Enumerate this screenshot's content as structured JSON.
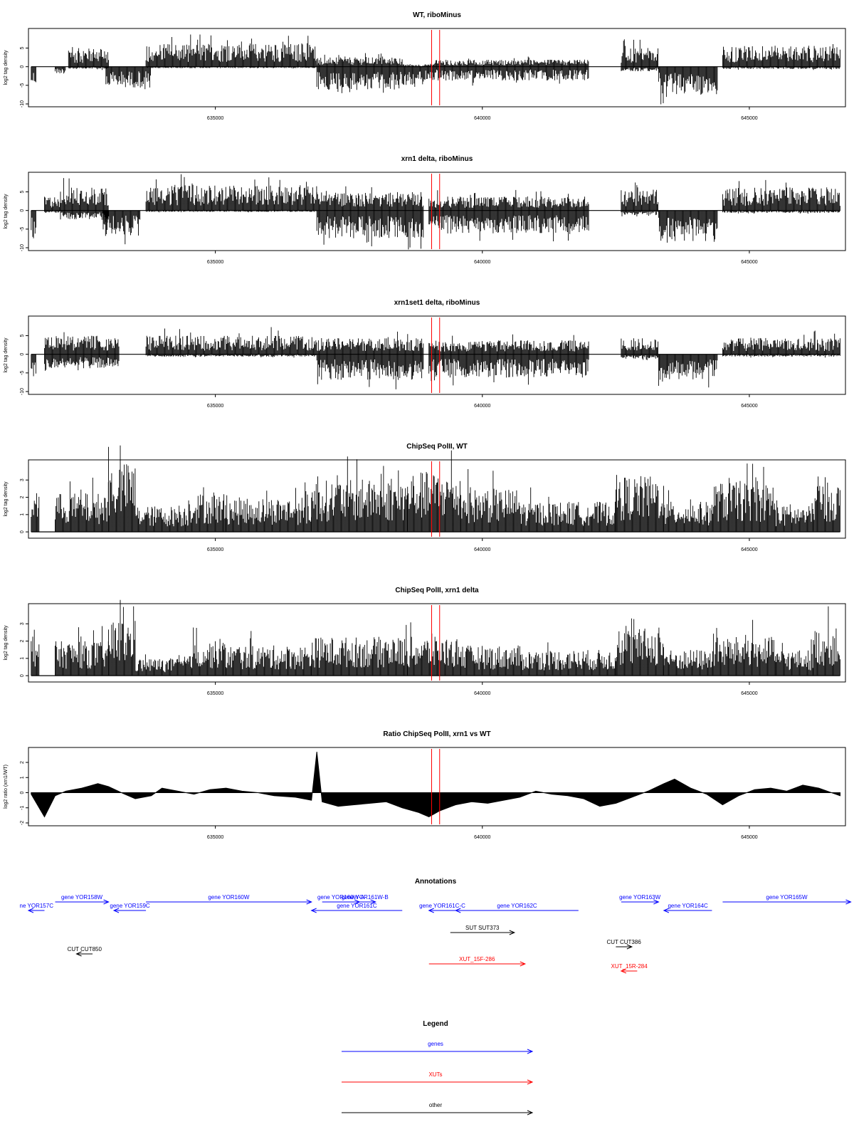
{
  "colors": {
    "gene": "#0000ff",
    "xut": "#ff0000",
    "other": "#000000",
    "marker": "#ff0000",
    "bars": "#000000"
  },
  "chart_data": [
    {
      "type": "bar",
      "id": "p1",
      "title": "WT, riboMinus",
      "ylabel": "log2 tag density",
      "xlim": [
        631500,
        646800
      ],
      "ylim": [
        -10,
        9.5
      ],
      "yticks": [
        -10,
        -5,
        0,
        5
      ],
      "xticks": [
        635000,
        640000,
        645000
      ],
      "markers": [
        639050,
        639200
      ],
      "segments": [
        {
          "x": [
            631550,
            631650
          ],
          "lo": -4,
          "hi": 0
        },
        {
          "x": [
            632000,
            632200
          ],
          "lo": -1.5,
          "hi": 0
        },
        {
          "x": [
            632250,
            633000
          ],
          "lo": -0.5,
          "hi": 4
        },
        {
          "x": [
            632950,
            633800
          ],
          "lo": -4.5,
          "hi": 0
        },
        {
          "x": [
            633700,
            636900
          ],
          "lo": -0.3,
          "hi": 5
        },
        {
          "x": [
            636900,
            638500
          ],
          "lo": -5,
          "hi": 2
        },
        {
          "x": [
            638500,
            639100
          ],
          "lo": -4,
          "hi": 0.5
        },
        {
          "x": [
            639100,
            642000
          ],
          "lo": -3,
          "hi": 1.5
        },
        {
          "x": [
            642600,
            643300
          ],
          "lo": -1,
          "hi": 4
        },
        {
          "x": [
            643300,
            644400
          ],
          "lo": -6,
          "hi": 0
        },
        {
          "x": [
            644500,
            646700
          ],
          "lo": -0.5,
          "hi": 4.5
        }
      ]
    },
    {
      "type": "bar",
      "id": "p2",
      "title": "xrn1 delta, riboMinus",
      "ylabel": "log2 tag density",
      "xlim": [
        631500,
        646800
      ],
      "ylim": [
        -10,
        9.5
      ],
      "yticks": [
        -10,
        -5,
        0,
        5
      ],
      "xticks": [
        635000,
        640000,
        645000
      ],
      "markers": [
        639050,
        639200
      ],
      "segments": [
        {
          "x": [
            631550,
            631650
          ],
          "lo": -6,
          "hi": 0
        },
        {
          "x": [
            631800,
            632100
          ],
          "lo": -0.5,
          "hi": 3
        },
        {
          "x": [
            632100,
            633000
          ],
          "lo": -2,
          "hi": 5
        },
        {
          "x": [
            632900,
            633600
          ],
          "lo": -5.5,
          "hi": 0
        },
        {
          "x": [
            633700,
            636900
          ],
          "lo": -0.3,
          "hi": 5.5
        },
        {
          "x": [
            636900,
            638900
          ],
          "lo": -6,
          "hi": 4
        },
        {
          "x": [
            639000,
            642000
          ],
          "lo": -5,
          "hi": 3
        },
        {
          "x": [
            642600,
            643300
          ],
          "lo": -1,
          "hi": 4.5
        },
        {
          "x": [
            643300,
            644400
          ],
          "lo": -7,
          "hi": 0
        },
        {
          "x": [
            644500,
            646700
          ],
          "lo": -0.5,
          "hi": 5
        }
      ]
    },
    {
      "type": "bar",
      "id": "p3",
      "title": "xrn1set1 delta, riboMinus",
      "ylabel": "log2 tag density",
      "xlim": [
        631500,
        646800
      ],
      "ylim": [
        -10,
        9.5
      ],
      "yticks": [
        -10,
        -5,
        0,
        5
      ],
      "xticks": [
        635000,
        640000,
        645000
      ],
      "markers": [
        639050,
        639200
      ],
      "segments": [
        {
          "x": [
            631550,
            631650
          ],
          "lo": -5,
          "hi": 0
        },
        {
          "x": [
            631800,
            633200
          ],
          "lo": -3,
          "hi": 4
        },
        {
          "x": [
            633700,
            636900
          ],
          "lo": -0.5,
          "hi": 4
        },
        {
          "x": [
            636900,
            638900
          ],
          "lo": -5.5,
          "hi": 3.5
        },
        {
          "x": [
            639000,
            642000
          ],
          "lo": -5,
          "hi": 3
        },
        {
          "x": [
            642600,
            643300
          ],
          "lo": -1,
          "hi": 3.5
        },
        {
          "x": [
            643300,
            644400
          ],
          "lo": -5.5,
          "hi": 0
        },
        {
          "x": [
            644500,
            646700
          ],
          "lo": -0.5,
          "hi": 3.5
        }
      ]
    },
    {
      "type": "bar",
      "id": "p4",
      "title": "ChipSeq PolII, WT",
      "ylabel": "log2 tag density",
      "xlim": [
        631500,
        646800
      ],
      "ylim": [
        -0.2,
        4
      ],
      "yticks": [
        0,
        1,
        2,
        3
      ],
      "xticks": [
        635000,
        640000,
        645000
      ],
      "markers": [
        639050,
        639200
      ],
      "segments": [
        {
          "x": [
            631550,
            631700
          ],
          "lo": 0,
          "hi": 2.2
        },
        {
          "x": [
            632000,
            633000
          ],
          "lo": 0,
          "hi": 1.8
        },
        {
          "x": [
            633000,
            633500
          ],
          "lo": 0,
          "hi": 3.2
        },
        {
          "x": [
            633500,
            634500
          ],
          "lo": 0,
          "hi": 1.2
        },
        {
          "x": [
            634500,
            635200
          ],
          "lo": 0,
          "hi": 1.8
        },
        {
          "x": [
            635200,
            636800
          ],
          "lo": 0,
          "hi": 1.6
        },
        {
          "x": [
            636800,
            638600
          ],
          "lo": 0,
          "hi": 2.4
        },
        {
          "x": [
            638600,
            639600
          ],
          "lo": 0,
          "hi": 2.8
        },
        {
          "x": [
            639600,
            640700
          ],
          "lo": 0,
          "hi": 2
        },
        {
          "x": [
            640700,
            642500
          ],
          "lo": 0,
          "hi": 1.4
        },
        {
          "x": [
            642500,
            643400
          ],
          "lo": 0,
          "hi": 2.6
        },
        {
          "x": [
            643400,
            644300
          ],
          "lo": 0,
          "hi": 1.4
        },
        {
          "x": [
            644300,
            645500
          ],
          "lo": 0,
          "hi": 2.3
        },
        {
          "x": [
            645500,
            646200
          ],
          "lo": 0,
          "hi": 1.2
        },
        {
          "x": [
            646200,
            646700
          ],
          "lo": 0,
          "hi": 2.3
        }
      ]
    },
    {
      "type": "bar",
      "id": "p5",
      "title": "ChipSeq PolII, xrn1 delta",
      "ylabel": "log2 tag density",
      "xlim": [
        631500,
        646800
      ],
      "ylim": [
        -0.2,
        4
      ],
      "yticks": [
        0,
        1,
        2,
        3
      ],
      "xticks": [
        635000,
        640000,
        645000
      ],
      "markers": [
        639050,
        639200
      ],
      "segments": [
        {
          "x": [
            631550,
            631700
          ],
          "lo": 0,
          "hi": 2
        },
        {
          "x": [
            632000,
            633000
          ],
          "lo": 0,
          "hi": 1.6
        },
        {
          "x": [
            633000,
            633500
          ],
          "lo": 0,
          "hi": 2.6
        },
        {
          "x": [
            633500,
            634500
          ],
          "lo": 0,
          "hi": 0.8
        },
        {
          "x": [
            634500,
            635200
          ],
          "lo": 0,
          "hi": 1.6
        },
        {
          "x": [
            635200,
            636800
          ],
          "lo": 0,
          "hi": 1.4
        },
        {
          "x": [
            636800,
            638600
          ],
          "lo": 0,
          "hi": 1.8
        },
        {
          "x": [
            638600,
            639600
          ],
          "lo": 0,
          "hi": 1.8
        },
        {
          "x": [
            639600,
            640700
          ],
          "lo": 0,
          "hi": 1.4
        },
        {
          "x": [
            640700,
            642500
          ],
          "lo": 0,
          "hi": 1.2
        },
        {
          "x": [
            642500,
            643400
          ],
          "lo": 0,
          "hi": 2.2
        },
        {
          "x": [
            643400,
            644300
          ],
          "lo": 0,
          "hi": 1.2
        },
        {
          "x": [
            644300,
            645500
          ],
          "lo": 0,
          "hi": 1.8
        },
        {
          "x": [
            645500,
            646200
          ],
          "lo": 0,
          "hi": 1.2
        },
        {
          "x": [
            646200,
            646700
          ],
          "lo": 0,
          "hi": 2.2
        }
      ]
    },
    {
      "type": "area",
      "id": "p6",
      "title": "Ratio ChipSeq PolII, xrn1 vs WT",
      "ylabel": "log2 ratio (xrn1/WT)",
      "xlim": [
        631500,
        646800
      ],
      "ylim": [
        -2,
        2.8
      ],
      "yticks": [
        -2,
        -1,
        0,
        1,
        2
      ],
      "xticks": [
        635000,
        640000,
        645000
      ],
      "markers": [
        639050,
        639200
      ],
      "x": [
        631550,
        631800,
        632000,
        632200,
        632500,
        632800,
        633000,
        633300,
        633500,
        633800,
        634000,
        634300,
        634600,
        634900,
        635200,
        635500,
        635800,
        636100,
        636500,
        636800,
        636900,
        637000,
        637300,
        637600,
        637900,
        638200,
        638500,
        638800,
        639000,
        639200,
        639500,
        639800,
        640100,
        640400,
        640700,
        641000,
        641300,
        641600,
        641900,
        642200,
        642500,
        642800,
        643100,
        643400,
        643600,
        643900,
        644200,
        644500,
        644800,
        645100,
        645400,
        645700,
        646000,
        646300,
        646700
      ],
      "y": [
        -0.1,
        -1.6,
        -0.2,
        0.1,
        0.3,
        0.6,
        0.4,
        -0.1,
        -0.4,
        -0.2,
        0.3,
        0.1,
        -0.1,
        0.2,
        0.3,
        0.1,
        0.0,
        -0.2,
        -0.3,
        -0.5,
        2.7,
        -0.6,
        -0.9,
        -0.8,
        -0.7,
        -0.6,
        -1.0,
        -1.3,
        -1.6,
        -1.2,
        -0.8,
        -0.6,
        -0.7,
        -0.5,
        -0.3,
        0.1,
        -0.1,
        -0.2,
        -0.4,
        -0.9,
        -0.7,
        -0.3,
        0.1,
        0.6,
        0.9,
        0.3,
        -0.1,
        -0.8,
        -0.2,
        0.2,
        0.3,
        0.1,
        0.5,
        0.3,
        -0.2
      ]
    }
  ],
  "annotations": {
    "title": "Annotations",
    "features": [
      {
        "label": "ne YOR157C",
        "kind": "gene",
        "strand": "-",
        "x": [
          631500,
          631800
        ],
        "row": 1
      },
      {
        "label": "gene YOR158W",
        "kind": "gene",
        "strand": "+",
        "x": [
          632000,
          633000
        ],
        "row": 0
      },
      {
        "label": "gene YOR159C",
        "kind": "gene",
        "strand": "-",
        "x": [
          633100,
          633700
        ],
        "row": 1
      },
      {
        "label": "gene YOR160W",
        "kind": "gene",
        "strand": "+",
        "x": [
          633700,
          636800
        ],
        "row": 0
      },
      {
        "label": "gene YOR160W-A",
        "kind": "gene",
        "strand": "+",
        "x": [
          637000,
          637700
        ],
        "row": 0
      },
      {
        "label": "gene YOR161C",
        "kind": "gene",
        "strand": "-",
        "x": [
          636800,
          638500
        ],
        "row": 1
      },
      {
        "label": "gene YOR161W-B",
        "kind": "gene",
        "strand": "+",
        "x": [
          637600,
          638000
        ],
        "row": 0
      },
      {
        "label": "gene YOR161C-C",
        "kind": "gene",
        "strand": "-",
        "x": [
          639000,
          639500
        ],
        "row": 1
      },
      {
        "label": "gene YOR162C",
        "kind": "gene",
        "strand": "-",
        "x": [
          639500,
          641800
        ],
        "row": 1
      },
      {
        "label": "gene YOR163W",
        "kind": "gene",
        "strand": "+",
        "x": [
          642600,
          643300
        ],
        "row": 0
      },
      {
        "label": "gene YOR164C",
        "kind": "gene",
        "strand": "-",
        "x": [
          643400,
          644300
        ],
        "row": 1
      },
      {
        "label": "gene YOR165W",
        "kind": "gene",
        "strand": "+",
        "x": [
          644500,
          646900
        ],
        "row": 0
      },
      {
        "label": "SUT SUT373",
        "kind": "other",
        "strand": "+",
        "x": [
          639400,
          640600
        ],
        "row": 3
      },
      {
        "label": "CUT CUT850",
        "kind": "other",
        "strand": "-",
        "x": [
          632400,
          632700
        ],
        "row": 5
      },
      {
        "label": "CUT CUT386",
        "kind": "other",
        "strand": "+",
        "x": [
          642500,
          642800
        ],
        "row": 4
      },
      {
        "label": "XUT_15F-286",
        "kind": "xut",
        "strand": "+",
        "x": [
          639000,
          640800
        ],
        "row": 6
      },
      {
        "label": "XUT_15R-284",
        "kind": "xut",
        "strand": "-",
        "x": [
          642600,
          642900
        ],
        "row": 7
      }
    ]
  },
  "legend": {
    "title": "Legend",
    "items": [
      {
        "label": "genes",
        "kind": "gene"
      },
      {
        "label": "XUTs",
        "kind": "xut"
      },
      {
        "label": "other",
        "kind": "other"
      }
    ]
  }
}
